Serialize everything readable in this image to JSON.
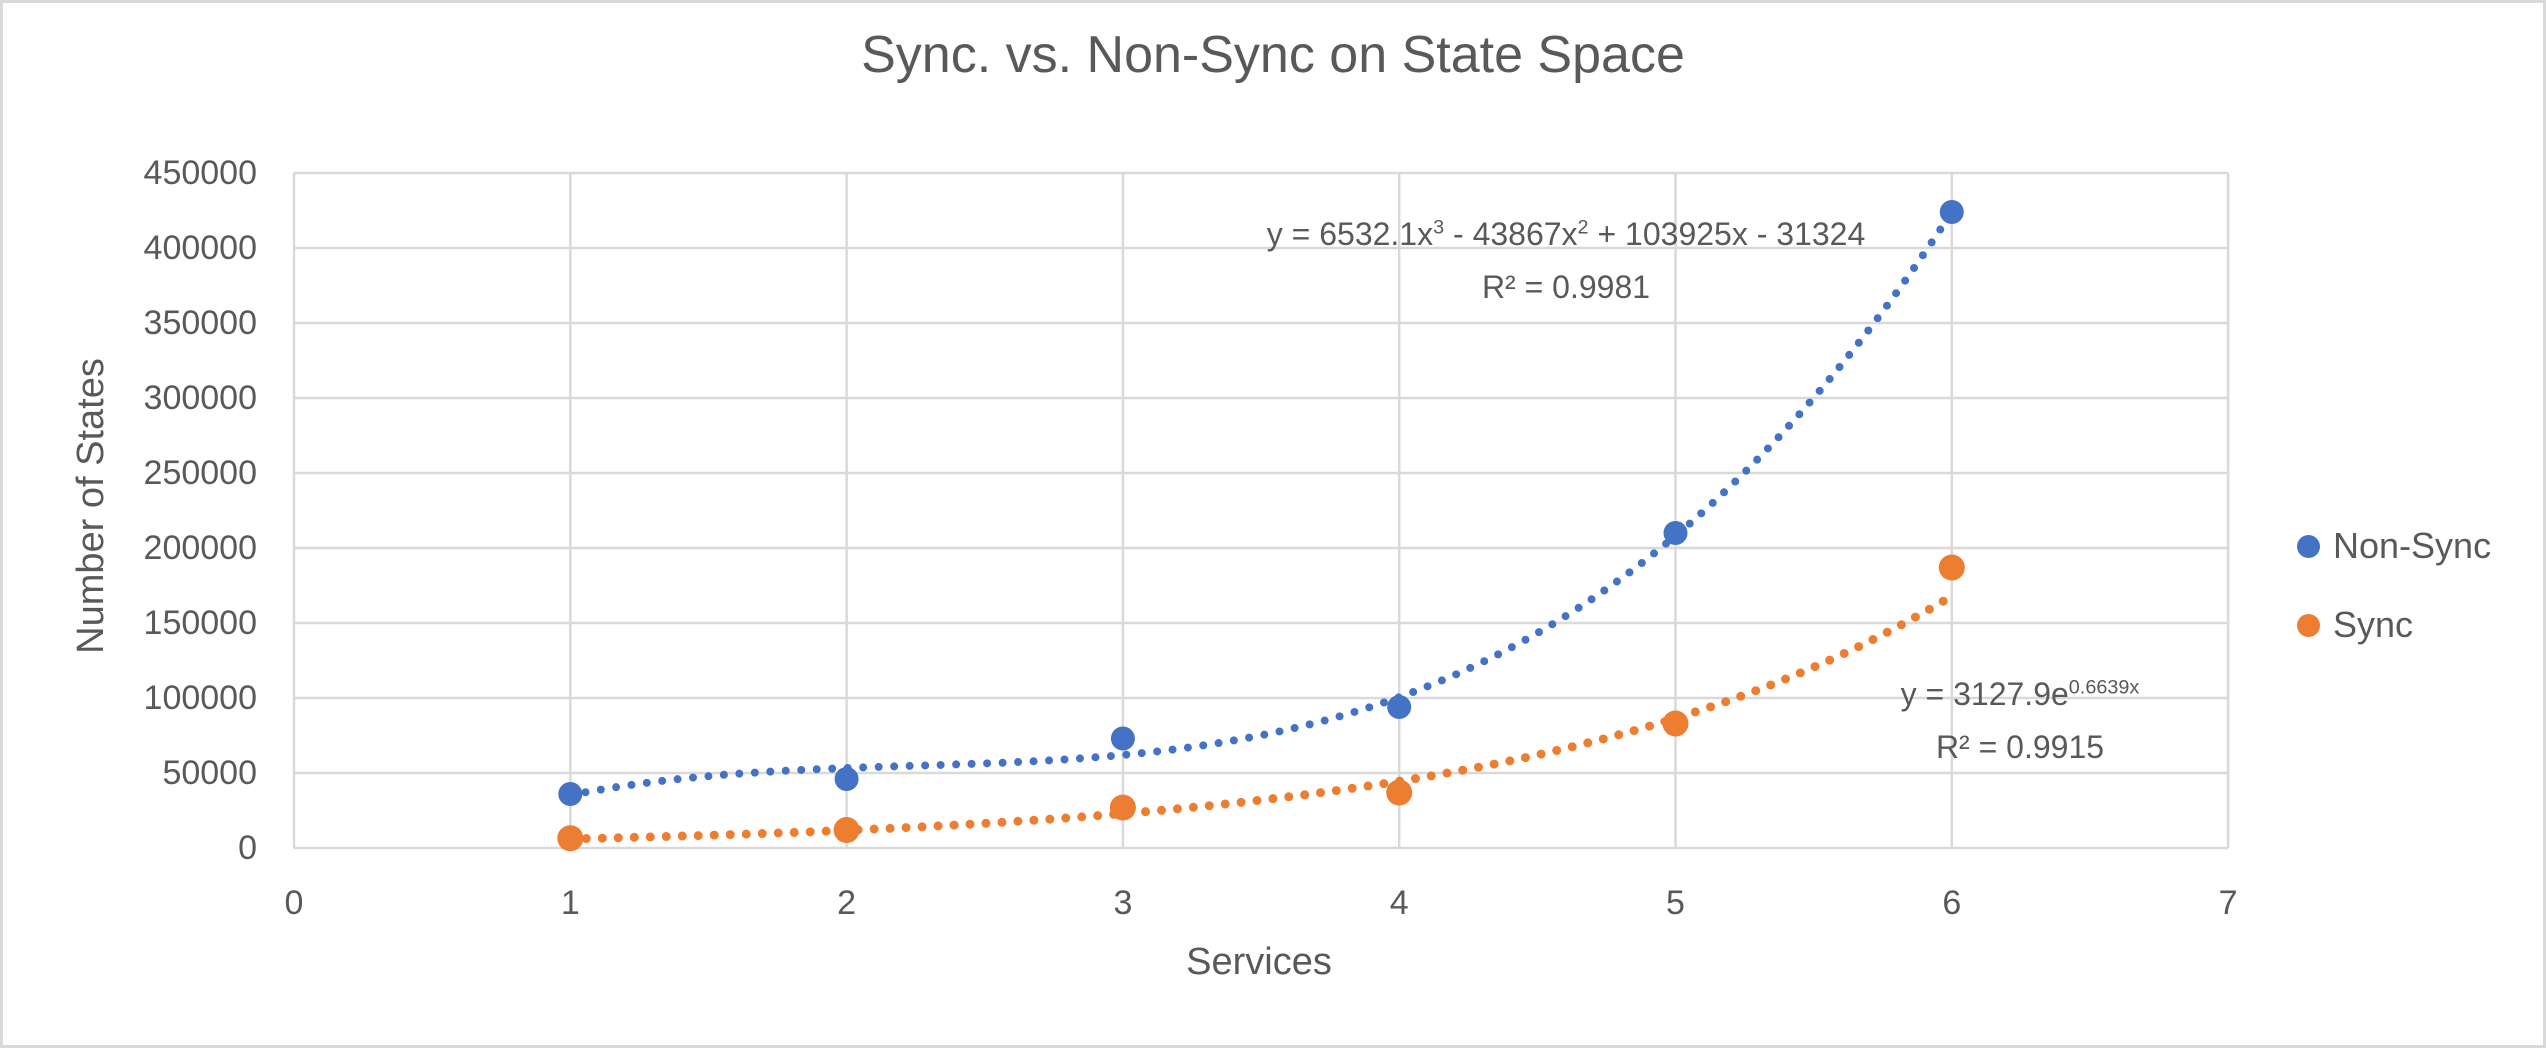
{
  "title": "Sync. vs. Non-Sync on State Space",
  "axes": {
    "x_title": "Services",
    "y_title": "Number of States",
    "x_ticks": [
      "0",
      "1",
      "2",
      "3",
      "4",
      "5",
      "6",
      "7"
    ],
    "y_ticks": [
      "0",
      "50000",
      "100000",
      "150000",
      "200000",
      "250000",
      "300000",
      "350000",
      "400000",
      "450000"
    ]
  },
  "legend": {
    "items": [
      {
        "label": "Non-Sync",
        "color": "#4472C4"
      },
      {
        "label": "Sync",
        "color": "#ED7D31"
      }
    ]
  },
  "annotations": {
    "nonsync_equation": {
      "p1": "y = 6532.1x",
      "sup1": "3",
      "p2": " - 43867x",
      "sup2": "2",
      "p3": " + 103925x - 31324",
      "r2": "R² = 0.9981"
    },
    "sync_equation": {
      "base": "y = 3127.9e",
      "exponent": "0.6639x",
      "r2": "R² = 0.9915"
    }
  },
  "colors": {
    "nonsync": "#4472C4",
    "sync": "#ED7D31",
    "text": "#595959",
    "gridline": "#D9D9D9"
  },
  "chart_data": {
    "type": "scatter",
    "title": "Sync. vs. Non-Sync on State Space",
    "xlabel": "Services",
    "ylabel": "Number of States",
    "xlim": [
      0,
      7
    ],
    "ylim": [
      0,
      450000
    ],
    "x_tick_step": 1,
    "y_tick_step": 50000,
    "grid": true,
    "legend_position": "right",
    "x": [
      1,
      2,
      3,
      4,
      5,
      6
    ],
    "series": [
      {
        "name": "Non-Sync",
        "color": "#4472C4",
        "marker": "circle",
        "values": [
          36000,
          46000,
          73000,
          94000,
          210000,
          424000
        ],
        "trendline": {
          "type": "polynomial",
          "style": "dotted",
          "coefficients": [
            6532.1,
            -43867,
            103925,
            -31324
          ],
          "x_range": [
            1,
            6
          ],
          "equation": "y = 6532.1x³ - 43867x² + 103925x - 31324",
          "r_squared": 0.9981
        }
      },
      {
        "name": "Sync",
        "color": "#ED7D31",
        "marker": "circle",
        "values": [
          6500,
          12000,
          27000,
          37000,
          83000,
          187000
        ],
        "trendline": {
          "type": "exponential",
          "style": "dotted",
          "a": 3127.9,
          "b": 0.6639,
          "x_range": [
            1,
            6
          ],
          "equation": "y = 3127.9e^(0.6639x)",
          "r_squared": 0.9915
        }
      }
    ]
  }
}
